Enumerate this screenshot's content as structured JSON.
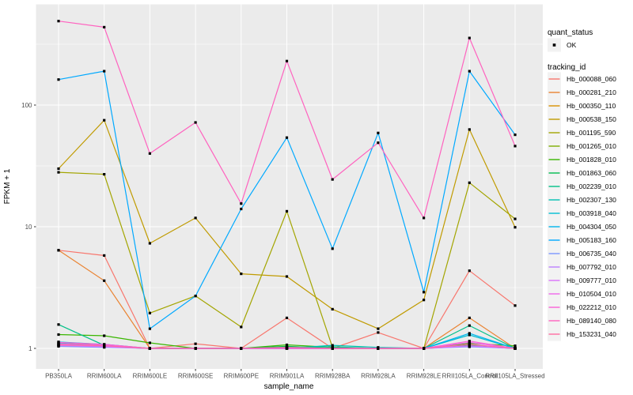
{
  "panel": {
    "background_color": "#EBEBEB",
    "grid_color": "#FFFFFF",
    "point_color": "#000000",
    "legend_key_color": "#F2F2F2",
    "tick_text_color": "#4D4D4D"
  },
  "axes": {
    "x_title": "sample_name",
    "y_title": "FPKM + 1",
    "y_tick_labels": [
      "1",
      "10",
      "100"
    ],
    "y_tick_values": [
      1,
      10,
      100
    ]
  },
  "legend": {
    "quant_status": {
      "title": "quant_status",
      "items": [
        {
          "label": "OK"
        }
      ]
    },
    "tracking_id": {
      "title": "tracking_id"
    }
  },
  "chart_data": {
    "type": "line",
    "title": "",
    "xlabel": "sample_name",
    "ylabel": "FPKM + 1",
    "yscale": "log10",
    "ylim": [
      1,
      600
    ],
    "grid": true,
    "legend_position": "right",
    "categories": [
      "PB350LA",
      "RRIM600LA",
      "RRIM600LE",
      "RRIM600SE",
      "RRIM600PE",
      "RRIM901LA",
      "RRIM928BA",
      "RRIM928LA",
      "RRIM928LE",
      "RRII105LA_Control",
      "RRII105LA_Stressed"
    ],
    "series": [
      {
        "name": "Hb_000088_060",
        "color": "#F8766D",
        "values": [
          6.4,
          5.8,
          1.0,
          1.09,
          1.0,
          1.78,
          1.0,
          1.35,
          1.0,
          4.35,
          2.25
        ]
      },
      {
        "name": "Hb_000281_210",
        "color": "#EA8331",
        "values": [
          6.4,
          3.6,
          1.0,
          1.0,
          1.0,
          1.03,
          1.0,
          1.0,
          1.0,
          1.78,
          1.0
        ]
      },
      {
        "name": "Hb_000350_110",
        "color": "#D89000",
        "values": [
          1.08,
          1.05,
          1.0,
          1.0,
          1.0,
          1.0,
          1.0,
          1.0,
          1.0,
          1.06,
          1.0
        ]
      },
      {
        "name": "Hb_000538_150",
        "color": "#C09B00",
        "values": [
          30,
          75,
          7.3,
          11.8,
          4.1,
          3.9,
          2.1,
          1.45,
          2.5,
          63,
          9.9
        ]
      },
      {
        "name": "Hb_001195_590",
        "color": "#A3A500",
        "values": [
          28,
          27,
          1.95,
          2.7,
          1.5,
          13.4,
          1.02,
          1.0,
          1.0,
          23,
          11.6
        ]
      },
      {
        "name": "Hb_001265_010",
        "color": "#7CAE00",
        "values": [
          1.12,
          1.06,
          1.0,
          1.0,
          1.0,
          1.02,
          1.0,
          1.0,
          1.0,
          1.05,
          1.02
        ]
      },
      {
        "name": "Hb_001828_010",
        "color": "#39B600",
        "values": [
          1.3,
          1.27,
          1.11,
          1.0,
          1.0,
          1.07,
          1.02,
          1.0,
          1.0,
          1.1,
          1.05
        ]
      },
      {
        "name": "Hb_001863_060",
        "color": "#00BB4E",
        "values": [
          1.05,
          1.03,
          1.0,
          1.0,
          1.0,
          1.04,
          1.0,
          1.0,
          1.0,
          1.07,
          1.0
        ]
      },
      {
        "name": "Hb_002239_010",
        "color": "#00C087",
        "values": [
          1.57,
          1.06,
          1.0,
          1.0,
          1.0,
          1.02,
          1.03,
          1.0,
          1.0,
          1.54,
          1.0
        ]
      },
      {
        "name": "Hb_002307_130",
        "color": "#00C0B2",
        "values": [
          1.07,
          1.04,
          1.0,
          1.0,
          1.0,
          1.0,
          1.06,
          1.02,
          1.0,
          1.04,
          1.0
        ]
      },
      {
        "name": "Hb_003918_040",
        "color": "#00BDD2",
        "values": [
          1.1,
          1.05,
          1.0,
          1.0,
          1.0,
          1.0,
          1.0,
          1.0,
          1.0,
          1.29,
          1.0
        ]
      },
      {
        "name": "Hb_004304_050",
        "color": "#00B5ED",
        "values": [
          1.13,
          1.08,
          1.0,
          1.0,
          1.0,
          1.0,
          1.0,
          1.0,
          1.0,
          1.33,
          1.0
        ]
      },
      {
        "name": "Hb_005183_160",
        "color": "#00A9FF",
        "values": [
          162,
          190,
          1.45,
          2.7,
          14,
          54,
          6.6,
          59,
          2.9,
          190,
          57
        ]
      },
      {
        "name": "Hb_006735_040",
        "color": "#7C96FF",
        "values": [
          1.04,
          1.02,
          1.0,
          1.0,
          1.0,
          1.0,
          1.0,
          1.0,
          1.0,
          1.03,
          1.0
        ]
      },
      {
        "name": "Hb_007792_010",
        "color": "#BC81FF",
        "values": [
          1.05,
          1.04,
          1.0,
          1.0,
          1.0,
          1.0,
          1.0,
          1.0,
          1.0,
          1.04,
          1.0
        ]
      },
      {
        "name": "Hb_009777_010",
        "color": "#DC71FA",
        "values": [
          1.06,
          1.03,
          1.0,
          1.0,
          1.0,
          1.0,
          1.0,
          1.0,
          1.0,
          1.05,
          1.0
        ]
      },
      {
        "name": "Hb_010504_010",
        "color": "#EF67EB",
        "values": [
          1.09,
          1.06,
          1.0,
          1.0,
          1.0,
          1.0,
          1.0,
          1.0,
          1.0,
          1.12,
          1.0
        ]
      },
      {
        "name": "Hb_022212_010",
        "color": "#FB61D7",
        "values": [
          1.12,
          1.08,
          1.0,
          1.0,
          1.0,
          1.0,
          1.0,
          1.0,
          1.0,
          1.15,
          1.0
        ]
      },
      {
        "name": "Hb_089140_080",
        "color": "#FF62BF",
        "values": [
          490,
          437,
          40,
          72,
          15.5,
          230,
          24.5,
          49,
          11.8,
          356,
          46
        ]
      },
      {
        "name": "Hb_153231_040",
        "color": "#FF6BA3",
        "values": [
          1.07,
          1.05,
          1.0,
          1.0,
          1.0,
          1.02,
          1.0,
          1.0,
          1.0,
          1.08,
          1.0
        ]
      }
    ]
  }
}
